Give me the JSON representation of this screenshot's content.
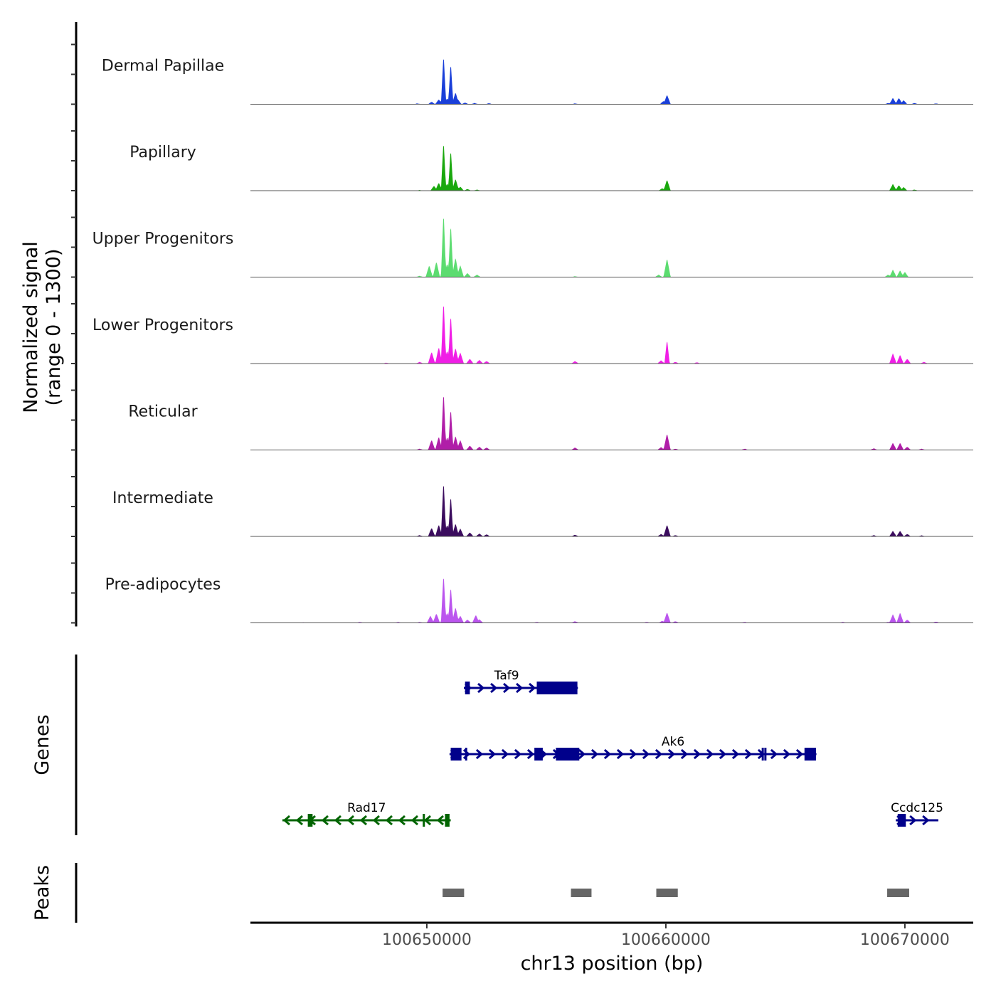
{
  "chart_data": {
    "type": "area",
    "title": "",
    "ylabel": "Normalized signal\n(range 0 - 1300)",
    "ylabel_lines": [
      "Normalized signal",
      "(range 0 - 1300)"
    ],
    "ylim": [
      0,
      1300
    ],
    "xlabel": "chr13 position (bp)",
    "xlim": [
      100642620,
      100672860
    ],
    "x_ticks": [
      100650000,
      100660000,
      100670000
    ],
    "x_tick_labels": [
      "100650000",
      "100660000",
      "100670000"
    ],
    "tracks": [
      {
        "name": "Dermal Papillae",
        "color": "#1a3fd9",
        "peaks": [
          [
            100649600,
            20
          ],
          [
            100650200,
            60
          ],
          [
            100650500,
            120
          ],
          [
            100650700,
            1300
          ],
          [
            100650850,
            150
          ],
          [
            100651000,
            1080
          ],
          [
            100651200,
            300
          ],
          [
            100651300,
            120
          ],
          [
            100651600,
            40
          ],
          [
            100652000,
            30
          ],
          [
            100652600,
            25
          ],
          [
            100656200,
            20
          ],
          [
            100659900,
            80
          ],
          [
            100660050,
            240
          ],
          [
            100669300,
            30
          ],
          [
            100669500,
            160
          ],
          [
            100669750,
            160
          ],
          [
            100669950,
            100
          ],
          [
            100670400,
            30
          ],
          [
            100671300,
            20
          ]
        ]
      },
      {
        "name": "Papillary",
        "color": "#1aa80e",
        "peaks": [
          [
            100649700,
            15
          ],
          [
            100650300,
            120
          ],
          [
            100650500,
            200
          ],
          [
            100650700,
            1300
          ],
          [
            100650850,
            180
          ],
          [
            100651000,
            1080
          ],
          [
            100651200,
            300
          ],
          [
            100651400,
            100
          ],
          [
            100651700,
            40
          ],
          [
            100652100,
            25
          ],
          [
            100660050,
            280
          ],
          [
            100659850,
            60
          ],
          [
            100669500,
            170
          ],
          [
            100669750,
            140
          ],
          [
            100669950,
            90
          ],
          [
            100670400,
            25
          ]
        ]
      },
      {
        "name": "Upper Progenitors",
        "color": "#5cdc70",
        "peaks": [
          [
            100649700,
            30
          ],
          [
            100650100,
            300
          ],
          [
            100650400,
            400
          ],
          [
            100650700,
            1700
          ],
          [
            100650850,
            350
          ],
          [
            100651000,
            1400
          ],
          [
            100651200,
            500
          ],
          [
            100651400,
            300
          ],
          [
            100651700,
            100
          ],
          [
            100652100,
            60
          ],
          [
            100656200,
            20
          ],
          [
            100659700,
            60
          ],
          [
            100660050,
            480
          ],
          [
            100669300,
            60
          ],
          [
            100669500,
            190
          ],
          [
            100669800,
            170
          ],
          [
            100670000,
            130
          ]
        ]
      },
      {
        "name": "Lower Progenitors",
        "color": "#f01ee6",
        "peaks": [
          [
            100648300,
            20
          ],
          [
            100649700,
            40
          ],
          [
            100650200,
            300
          ],
          [
            100650500,
            420
          ],
          [
            100650700,
            1660
          ],
          [
            100650850,
            330
          ],
          [
            100651000,
            1300
          ],
          [
            100651200,
            400
          ],
          [
            100651400,
            280
          ],
          [
            100651800,
            120
          ],
          [
            100652200,
            90
          ],
          [
            100652500,
            60
          ],
          [
            100656200,
            60
          ],
          [
            100659800,
            80
          ],
          [
            100660050,
            620
          ],
          [
            100660400,
            40
          ],
          [
            100661300,
            30
          ],
          [
            100669500,
            260
          ],
          [
            100669800,
            220
          ],
          [
            100670100,
            120
          ],
          [
            100670800,
            40
          ]
        ]
      },
      {
        "name": "Reticular",
        "color": "#b01ea8",
        "peaks": [
          [
            100649700,
            30
          ],
          [
            100650200,
            260
          ],
          [
            100650500,
            340
          ],
          [
            100650700,
            1540
          ],
          [
            100650850,
            330
          ],
          [
            100651000,
            1100
          ],
          [
            100651200,
            360
          ],
          [
            100651400,
            250
          ],
          [
            100651800,
            110
          ],
          [
            100652200,
            80
          ],
          [
            100652500,
            60
          ],
          [
            100656200,
            60
          ],
          [
            100659800,
            70
          ],
          [
            100660050,
            420
          ],
          [
            100660400,
            30
          ],
          [
            100663300,
            30
          ],
          [
            100668700,
            40
          ],
          [
            100669500,
            180
          ],
          [
            100669800,
            180
          ],
          [
            100670100,
            80
          ],
          [
            100670700,
            30
          ]
        ]
      },
      {
        "name": "Intermediate",
        "color": "#3b0c5e",
        "peaks": [
          [
            100649700,
            30
          ],
          [
            100650200,
            220
          ],
          [
            100650500,
            300
          ],
          [
            100650700,
            1460
          ],
          [
            100650850,
            300
          ],
          [
            100651000,
            1080
          ],
          [
            100651200,
            330
          ],
          [
            100651400,
            200
          ],
          [
            100651800,
            100
          ],
          [
            100652200,
            70
          ],
          [
            100652500,
            50
          ],
          [
            100656200,
            40
          ],
          [
            100659800,
            60
          ],
          [
            100660050,
            300
          ],
          [
            100660400,
            30
          ],
          [
            100668700,
            30
          ],
          [
            100669500,
            140
          ],
          [
            100669800,
            140
          ],
          [
            100670100,
            60
          ],
          [
            100670700,
            25
          ]
        ]
      },
      {
        "name": "Pre-adipocytes",
        "color": "#bb55ee",
        "peaks": [
          [
            100644800,
            10
          ],
          [
            100647200,
            20
          ],
          [
            100648800,
            20
          ],
          [
            100649700,
            20
          ],
          [
            100650150,
            180
          ],
          [
            100650400,
            240
          ],
          [
            100650700,
            1280
          ],
          [
            100650850,
            260
          ],
          [
            100651000,
            960
          ],
          [
            100651200,
            400
          ],
          [
            100651400,
            180
          ],
          [
            100651700,
            80
          ],
          [
            100652050,
            200
          ],
          [
            100652200,
            90
          ],
          [
            100654600,
            20
          ],
          [
            100656200,
            40
          ],
          [
            100659200,
            20
          ],
          [
            100659850,
            50
          ],
          [
            100660050,
            270
          ],
          [
            100660400,
            40
          ],
          [
            100663300,
            20
          ],
          [
            100667400,
            20
          ],
          [
            100669300,
            20
          ],
          [
            100669500,
            220
          ],
          [
            100669800,
            260
          ],
          [
            100670100,
            80
          ],
          [
            100671300,
            30
          ]
        ]
      }
    ],
    "genes": [
      {
        "name": "Taf9",
        "strand": "+",
        "color": "#00008b",
        "row": 0,
        "start": 100651550,
        "end": 100656320,
        "exons": [
          [
            100651600,
            100651800
          ],
          [
            100654600,
            100656300
          ]
        ],
        "utr": [
          [
            100651550,
            100651600
          ]
        ]
      },
      {
        "name": "Ak6",
        "strand": "+",
        "color": "#00008b",
        "row": 1,
        "start": 100650950,
        "end": 100666300,
        "exons": [
          [
            100651000,
            100651450
          ],
          [
            100651600,
            100651620
          ],
          [
            100654500,
            100654850
          ],
          [
            100655400,
            100656380
          ],
          [
            100664010,
            100664060
          ],
          [
            100664120,
            100664180
          ],
          [
            100665800,
            100666280
          ]
        ],
        "utr": []
      },
      {
        "name": "Rad17",
        "strand": "-",
        "color": "#006400",
        "row": 2,
        "start": 100643960,
        "end": 100651000,
        "exons": [
          [
            100645020,
            100645220
          ],
          [
            100649830,
            100649870
          ],
          [
            100650760,
            100650950
          ]
        ],
        "utr": []
      },
      {
        "name": "Ccdc125",
        "strand": "+",
        "color": "#00008b",
        "row": 2,
        "start": 100669620,
        "end": 100671400,
        "exons": [
          [
            100669700,
            100670040
          ]
        ],
        "utr": []
      }
    ],
    "peaks_track": [
      {
        "start": 100650660,
        "end": 100651560
      },
      {
        "start": 100656030,
        "end": 100656890
      },
      {
        "start": 100659600,
        "end": 100660500
      },
      {
        "start": 100669260,
        "end": 100670180
      }
    ],
    "panel_labels": {
      "genes": "Genes",
      "peaks": "Peaks"
    },
    "grid": false,
    "legend": "none"
  }
}
